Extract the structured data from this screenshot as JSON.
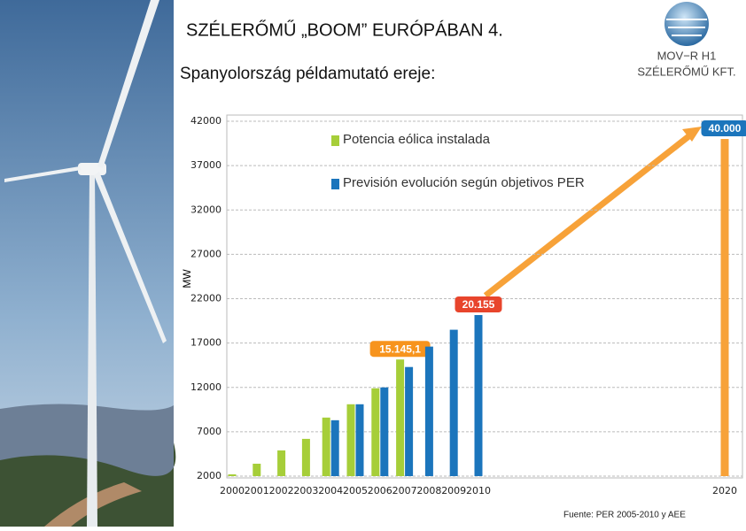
{
  "header": {
    "title": "SZÉLERŐMŰ „BOOM” EURÓPÁBAN 4.",
    "subtitle": "Spanyolország példamutató ereje:"
  },
  "logo": {
    "name": "MOV−R H1",
    "company": "SZÉLERŐMŰ KFT."
  },
  "chart_data": {
    "type": "bar",
    "y_label": "MW",
    "source": "Fuente: PER 2005-2010 y AEE",
    "x": [
      2000,
      2001,
      2002,
      2003,
      2004,
      2005,
      2006,
      2007,
      2008,
      2009,
      2010,
      2020
    ],
    "xlim": [
      2000,
      2020
    ],
    "ylim": [
      2000,
      42000
    ],
    "yticks": [
      2000,
      7000,
      12000,
      17000,
      22000,
      27000,
      32000,
      37000,
      42000
    ],
    "grid": true,
    "series": [
      {
        "name": "Potencia eólica instalada",
        "color": "#a6ce39",
        "values": [
          2200,
          3400,
          4900,
          6200,
          8600,
          10100,
          11900,
          15145.1,
          null,
          null,
          null,
          null
        ],
        "value_labels": [
          null,
          null,
          null,
          null,
          null,
          null,
          null,
          "15.145,1",
          null,
          null,
          null,
          null
        ],
        "label_color": "#f7941d"
      },
      {
        "name": "Previsión evolución según objetivos PER",
        "color": "#1b75bc",
        "values": [
          null,
          null,
          null,
          null,
          8300,
          10100,
          12000,
          14300,
          16600,
          18500,
          20155,
          null
        ],
        "value_labels": [
          null,
          null,
          null,
          null,
          null,
          null,
          null,
          null,
          null,
          null,
          "20.155",
          null
        ],
        "label_color": "#e8452c"
      },
      {
        "color": "#f7a239",
        "values": [
          null,
          null,
          null,
          null,
          null,
          null,
          null,
          null,
          null,
          null,
          null,
          40000
        ],
        "value_labels": [
          null,
          null,
          null,
          null,
          null,
          null,
          null,
          null,
          null,
          null,
          null,
          "40.000"
        ],
        "label_color": "#1b75bc"
      }
    ]
  }
}
